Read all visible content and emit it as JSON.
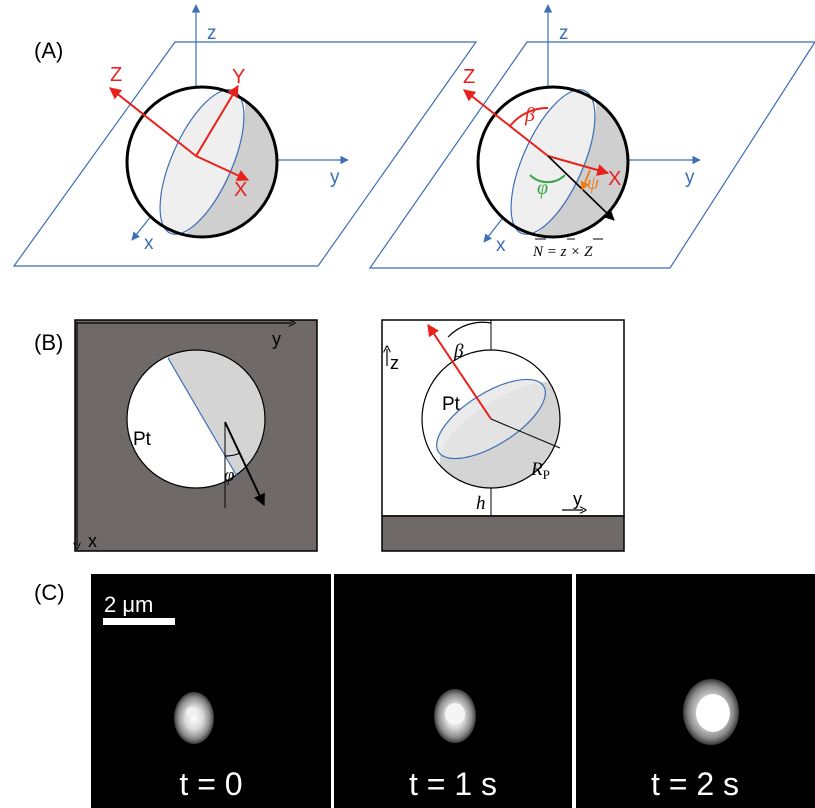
{
  "panel_a": {
    "label": "(A)",
    "left": {
      "z": "z",
      "y": "y",
      "x": "x",
      "Z": "Z",
      "Y": "Y",
      "X": "X"
    },
    "right": {
      "z": "z",
      "y": "y",
      "x": "x",
      "Z": "Z",
      "X": "X",
      "beta": "β",
      "phi": "φ",
      "psi": "ψ",
      "n_eq": "N = z × Z"
    }
  },
  "panel_b": {
    "label": "(B)",
    "left": {
      "y": "y",
      "x": "x",
      "pt": "Pt",
      "phi": "φ"
    },
    "right": {
      "z": "z",
      "y": "y",
      "pt": "Pt",
      "beta": "β",
      "rp": "R",
      "rp_sub": "P",
      "h": "h"
    }
  },
  "panel_c": {
    "label": "(C)",
    "scale_bar": "2 μm",
    "frames": [
      {
        "time": "t = 0"
      },
      {
        "time": "t = 1 s"
      },
      {
        "time": "t = 2 s"
      }
    ]
  },
  "colors": {
    "red": "#e8211d",
    "blue": "#3b6fb6",
    "green": "#3aa547",
    "orange": "#f07d1a",
    "gray_bg": "#6f6a69"
  }
}
